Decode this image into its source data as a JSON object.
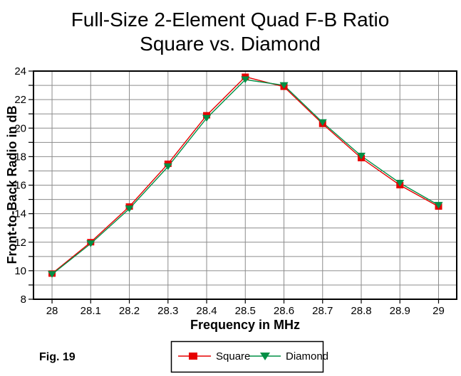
{
  "chart_data": {
    "type": "line",
    "title": "Full-Size 2-Element Quad F-B Ratio",
    "subtitle": "Square vs. Diamond",
    "xlabel": "Frequency in MHz",
    "ylabel": "Front-to-Back Radio in dB",
    "fig_label": "Fig. 19",
    "x": [
      28,
      28.1,
      28.2,
      28.3,
      28.4,
      28.5,
      28.6,
      28.7,
      28.8,
      28.9,
      29
    ],
    "x_tick_labels": [
      "28",
      "28.1",
      "28.2",
      "28.3",
      "28.4",
      "28.5",
      "28.6",
      "28.7",
      "28.8",
      "28.9",
      "29"
    ],
    "xlim": [
      27.952,
      29.047
    ],
    "ylim": [
      8,
      24
    ],
    "y_tick_values": [
      8,
      10,
      12,
      14,
      16,
      18,
      20,
      22,
      24
    ],
    "y_tick_labels": [
      "8",
      "10",
      "12",
      "14",
      "16",
      "18",
      "20",
      "22",
      "24"
    ],
    "y_minor_tick_step": 1,
    "grid": true,
    "gridline_color": "#8c8c8c",
    "legend_position": "bottom-center",
    "series": [
      {
        "name": "Square",
        "marker": "square",
        "color": "#e60000",
        "values": [
          9.8,
          12.0,
          14.5,
          17.5,
          20.9,
          23.6,
          22.9,
          20.3,
          17.9,
          16.0,
          14.5
        ]
      },
      {
        "name": "Diamond",
        "marker": "triangle-down",
        "color": "#008f45",
        "values": [
          9.75,
          11.9,
          14.35,
          17.3,
          20.7,
          23.4,
          23.0,
          20.4,
          18.05,
          16.15,
          14.6
        ]
      }
    ]
  }
}
